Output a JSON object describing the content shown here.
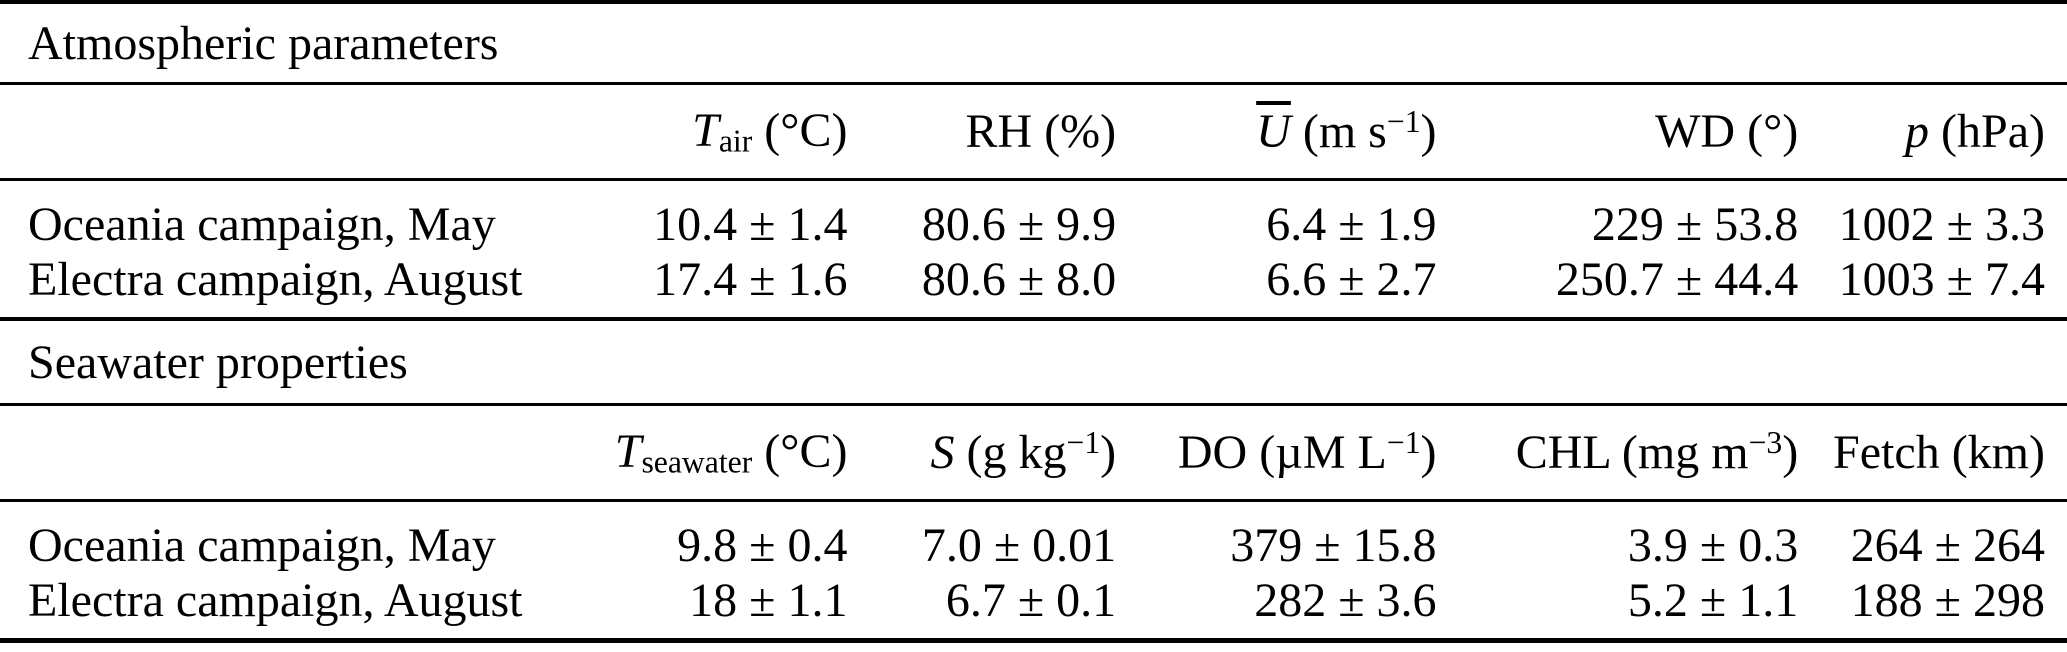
{
  "page": {
    "background_color": "#ffffff",
    "text_color": "#000000",
    "rule_color": "#000000"
  },
  "table": {
    "row_label_header": "",
    "sections": [
      {
        "title": "Atmospheric parameters",
        "columns": [
          {
            "plain_label": "T_air (°C)",
            "segments": [
              {
                "text": "T",
                "style": "it",
                "name": "symbol-T-air"
              },
              {
                "text": "air",
                "style": "sb",
                "name": "subscript-air"
              },
              {
                "text": " (°C)",
                "style": "",
                "name": "unit-degC"
              }
            ]
          },
          {
            "plain_label": "RH (%)",
            "segments": [
              {
                "text": "RH (%)",
                "style": "",
                "name": "label-RH"
              }
            ]
          },
          {
            "plain_label": "U-bar (m s^-1)",
            "segments": [
              {
                "text": "U",
                "style": "itov",
                "name": "symbol-U-mean"
              },
              {
                "text": " (m s",
                "style": "",
                "name": "unit-ms-open"
              },
              {
                "text": "−1",
                "style": "sp",
                "name": "exponent-minus-1"
              },
              {
                "text": ")",
                "style": "",
                "name": "unit-close"
              }
            ]
          },
          {
            "plain_label": "WD (°)",
            "segments": [
              {
                "text": "WD (°)",
                "style": "",
                "name": "label-WD"
              }
            ]
          },
          {
            "plain_label": "p (hPa)",
            "segments": [
              {
                "text": "p",
                "style": "it",
                "name": "symbol-p"
              },
              {
                "text": " (hPa)",
                "style": "",
                "name": "unit-hPa"
              }
            ]
          }
        ],
        "rows": [
          {
            "label": "Oceania campaign, May",
            "values": [
              "10.4 ± 1.4",
              "80.6 ± 9.9",
              "6.4 ± 1.9",
              "229 ± 53.8",
              "1002 ± 3.3"
            ]
          },
          {
            "label": "Electra campaign, August",
            "values": [
              "17.4 ± 1.6",
              "80.6 ± 8.0",
              "6.6 ± 2.7",
              "250.7 ± 44.4",
              "1003 ± 7.4"
            ]
          }
        ]
      },
      {
        "title": "Seawater properties",
        "columns": [
          {
            "plain_label": "T_seawater (°C)",
            "segments": [
              {
                "text": "T",
                "style": "it",
                "name": "symbol-T-seawater"
              },
              {
                "text": "seawater",
                "style": "sb",
                "name": "subscript-seawater"
              },
              {
                "text": " (°C)",
                "style": "",
                "name": "unit-degC"
              }
            ]
          },
          {
            "plain_label": "S (g kg^-1)",
            "segments": [
              {
                "text": "S",
                "style": "it",
                "name": "symbol-S"
              },
              {
                "text": " (g kg",
                "style": "",
                "name": "unit-gkg-open"
              },
              {
                "text": "−1",
                "style": "sp",
                "name": "exponent-minus-1"
              },
              {
                "text": ")",
                "style": "",
                "name": "unit-close"
              }
            ]
          },
          {
            "plain_label": "DO (µM L^-1)",
            "segments": [
              {
                "text": "DO (µM L",
                "style": "",
                "name": "label-DO-unit-open"
              },
              {
                "text": "−1",
                "style": "sp",
                "name": "exponent-minus-1"
              },
              {
                "text": ")",
                "style": "",
                "name": "unit-close"
              }
            ]
          },
          {
            "plain_label": "CHL (mg m^-3)",
            "segments": [
              {
                "text": "CHL (mg m",
                "style": "",
                "name": "label-CHL-unit-open"
              },
              {
                "text": "−3",
                "style": "sp",
                "name": "exponent-minus-3"
              },
              {
                "text": ")",
                "style": "",
                "name": "unit-close"
              }
            ]
          },
          {
            "plain_label": "Fetch (km)",
            "segments": [
              {
                "text": "Fetch (km)",
                "style": "",
                "name": "label-fetch"
              }
            ]
          }
        ],
        "rows": [
          {
            "label": "Oceania campaign, May",
            "values": [
              "9.8 ± 0.4",
              "7.0 ± 0.01",
              "379 ± 15.8",
              "3.9 ± 0.3",
              "264 ± 264"
            ]
          },
          {
            "label": "Electra campaign, August",
            "values": [
              "18 ± 1.1",
              "6.7 ± 0.1",
              "282 ± 3.6",
              "5.2 ± 1.1",
              "188 ± 298"
            ]
          }
        ]
      }
    ]
  }
}
